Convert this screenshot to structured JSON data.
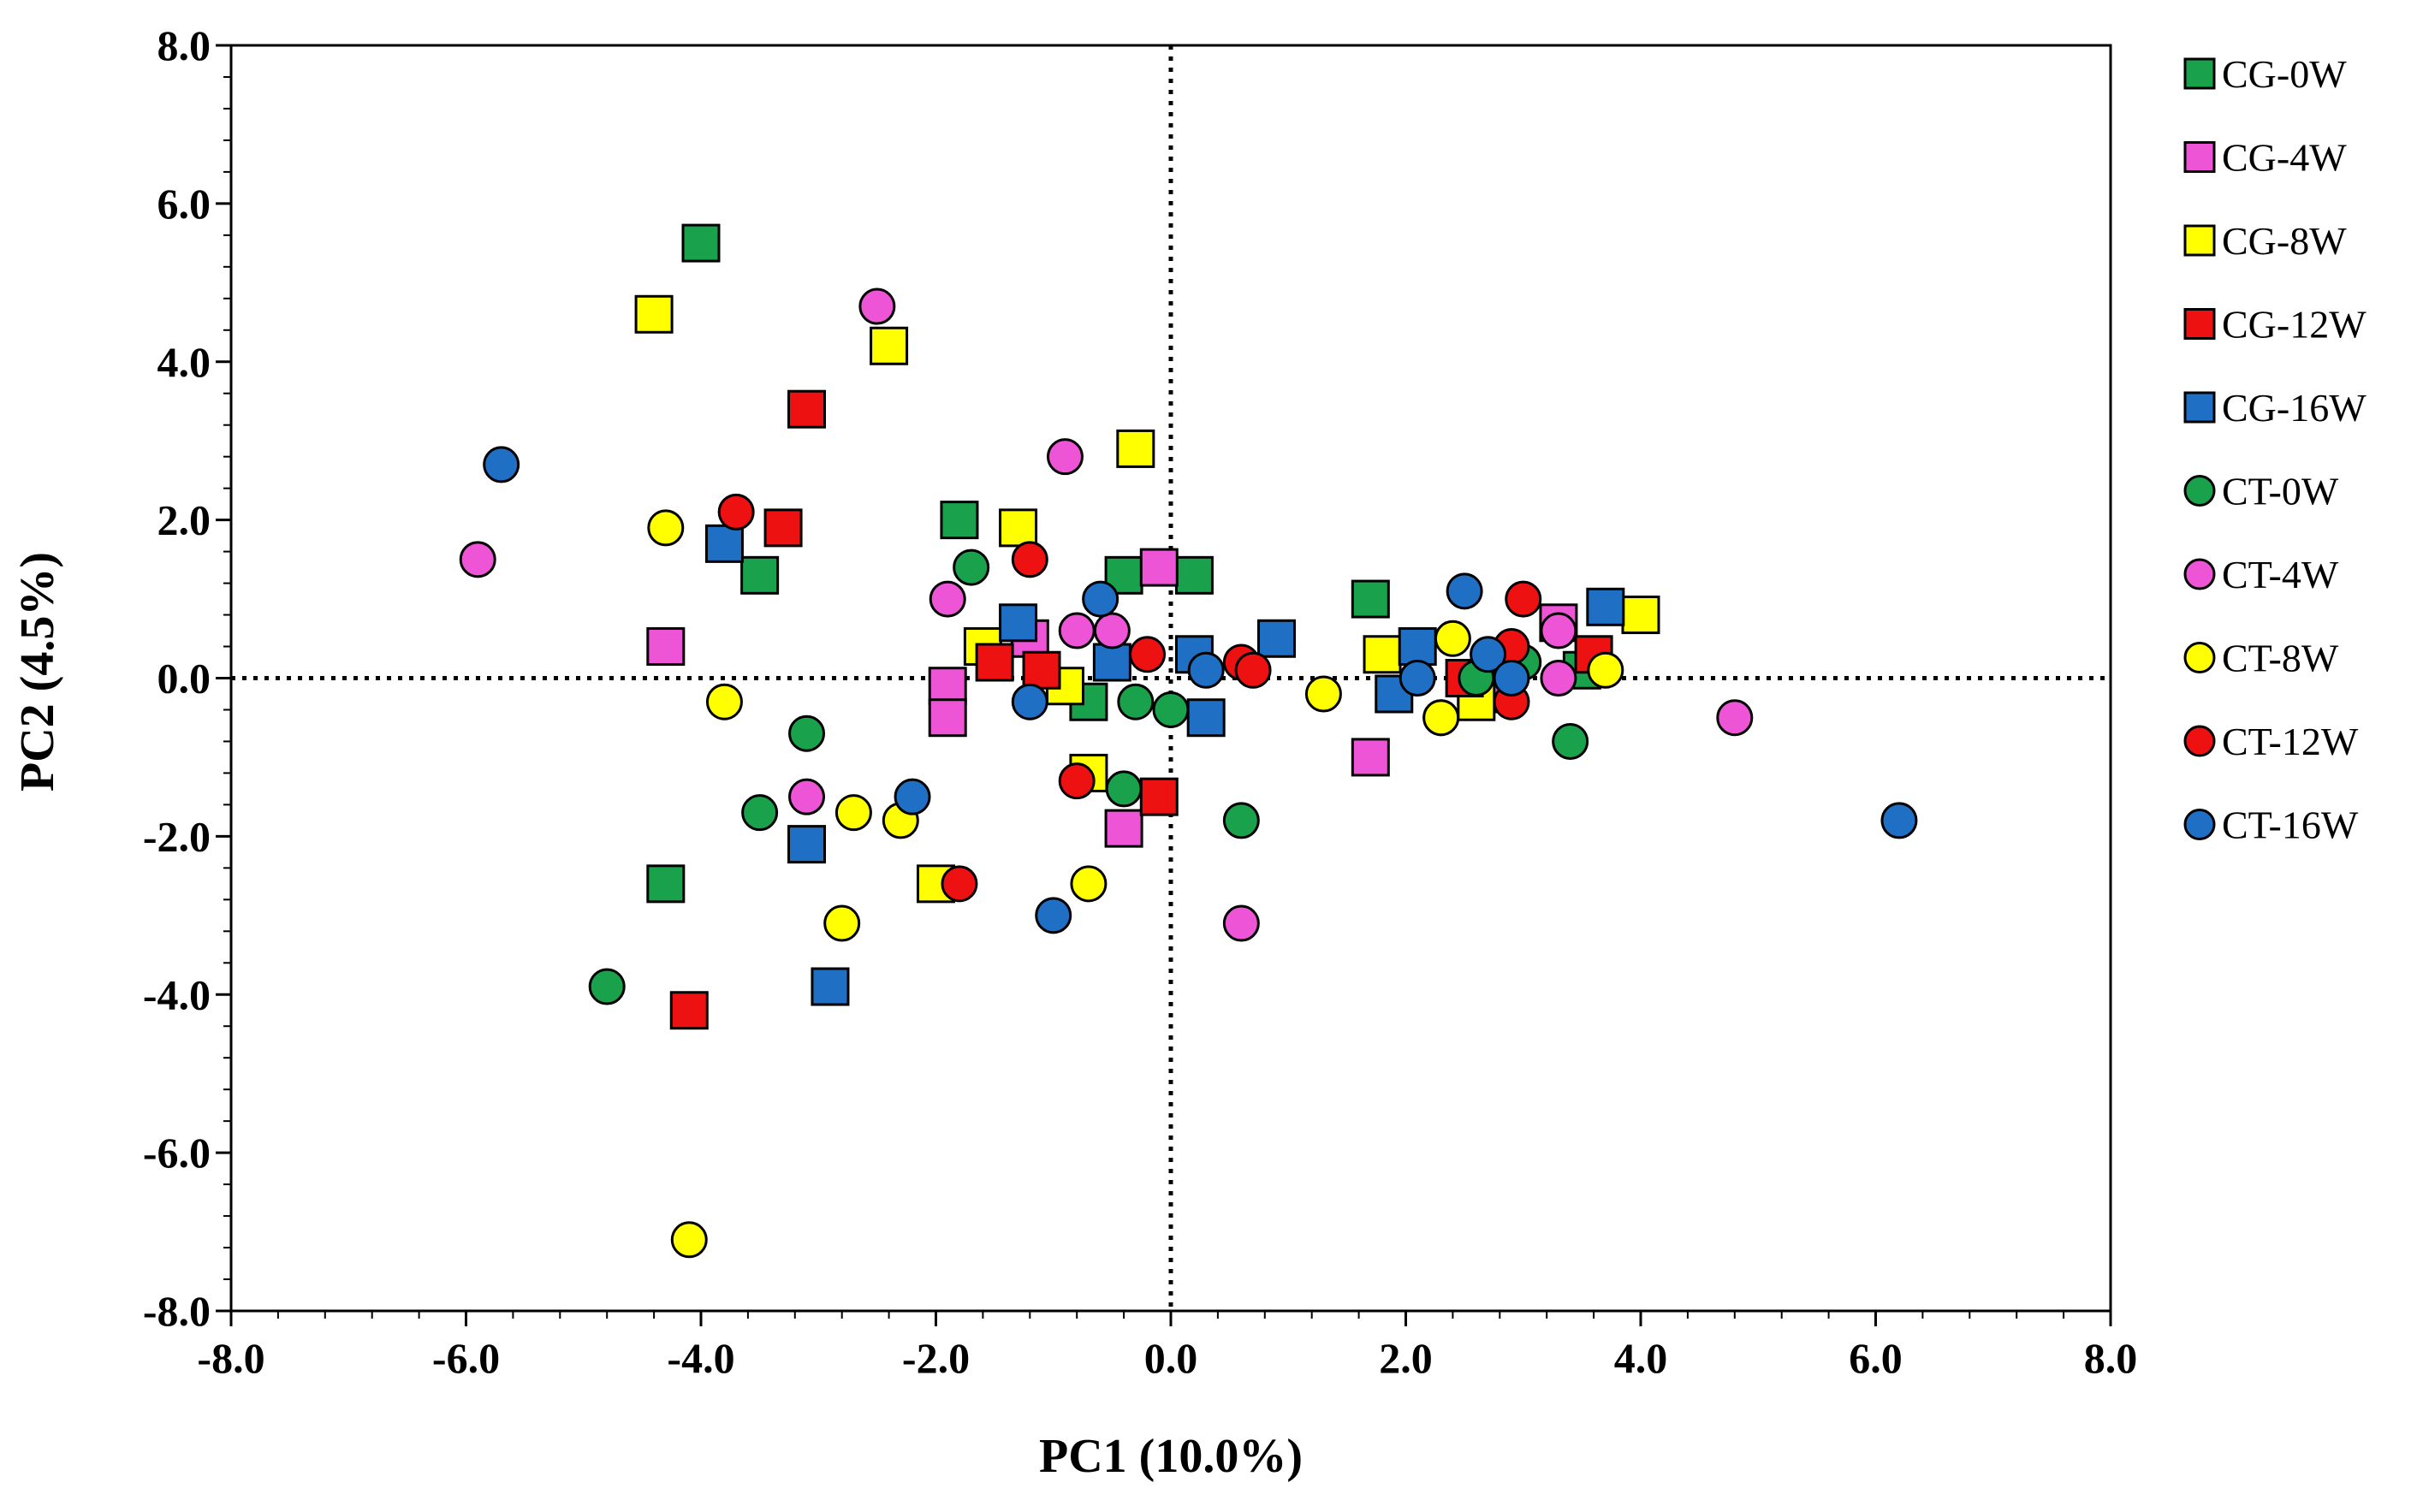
{
  "chart_data": {
    "type": "scatter",
    "title": "",
    "xlabel": "PC1 (10.0%)",
    "ylabel": "PC2 (4.5%)",
    "xlim": [
      -8,
      8
    ],
    "ylim": [
      -8,
      8
    ],
    "xticks": [
      "-8.0",
      "-6.0",
      "-4.0",
      "-2.0",
      "0.0",
      "2.0",
      "4.0",
      "6.0",
      "8.0"
    ],
    "yticks": [
      "-8.0",
      "-6.0",
      "-4.0",
      "-2.0",
      "0.0",
      "2.0",
      "4.0",
      "6.0",
      "8.0"
    ],
    "reference_lines": {
      "x": 0,
      "y": 0,
      "style": "dotted"
    },
    "legend_position": "right",
    "series": [
      {
        "name": "CG-0W",
        "marker": "square",
        "color": "#1aa14b",
        "points": [
          [
            -4.0,
            5.5
          ],
          [
            -3.5,
            1.3
          ],
          [
            -1.8,
            2.0
          ],
          [
            -0.4,
            1.3
          ],
          [
            0.2,
            1.3
          ],
          [
            1.7,
            1.0
          ],
          [
            -4.3,
            -2.6
          ],
          [
            -0.7,
            -0.3
          ],
          [
            3.5,
            0.1
          ],
          [
            2.6,
            -0.1
          ]
        ]
      },
      {
        "name": "CG-4W",
        "marker": "square",
        "color": "#ee55d6",
        "points": [
          [
            -4.3,
            0.4
          ],
          [
            -1.9,
            -0.1
          ],
          [
            -1.9,
            -0.5
          ],
          [
            -0.4,
            -1.9
          ],
          [
            -0.1,
            1.4
          ],
          [
            1.7,
            -1.0
          ],
          [
            3.3,
            0.7
          ],
          [
            2.7,
            -0.2
          ],
          [
            -1.2,
            0.5
          ]
        ]
      },
      {
        "name": "CG-8W",
        "marker": "square",
        "color": "#ffff00",
        "points": [
          [
            -4.4,
            4.6
          ],
          [
            -2.4,
            4.2
          ],
          [
            -0.3,
            2.9
          ],
          [
            -1.3,
            1.9
          ],
          [
            -1.6,
            0.4
          ],
          [
            -0.9,
            -0.1
          ],
          [
            -0.7,
            -1.2
          ],
          [
            -2.0,
            -2.6
          ],
          [
            1.8,
            0.3
          ],
          [
            2.6,
            -0.3
          ],
          [
            4.0,
            0.8
          ]
        ]
      },
      {
        "name": "CG-12W",
        "marker": "square",
        "color": "#ee1111",
        "points": [
          [
            -3.1,
            3.4
          ],
          [
            -3.3,
            1.9
          ],
          [
            -1.5,
            0.2
          ],
          [
            -1.1,
            0.1
          ],
          [
            -0.1,
            -1.5
          ],
          [
            -4.1,
            -4.2
          ],
          [
            2.5,
            0.0
          ],
          [
            3.6,
            0.3
          ]
        ]
      },
      {
        "name": "CG-16W",
        "marker": "square",
        "color": "#1f6fc4",
        "points": [
          [
            -3.8,
            1.7
          ],
          [
            -1.3,
            0.7
          ],
          [
            -0.5,
            0.2
          ],
          [
            0.2,
            0.3
          ],
          [
            0.9,
            0.5
          ],
          [
            0.3,
            -0.5
          ],
          [
            -3.1,
            -2.1
          ],
          [
            -2.9,
            -3.9
          ],
          [
            1.9,
            -0.2
          ],
          [
            2.1,
            0.4
          ],
          [
            3.7,
            0.9
          ]
        ]
      },
      {
        "name": "CT-0W",
        "marker": "circle",
        "color": "#1aa14b",
        "points": [
          [
            -1.7,
            1.4
          ],
          [
            -3.1,
            -0.7
          ],
          [
            -3.5,
            -1.7
          ],
          [
            -0.4,
            -1.4
          ],
          [
            -0.3,
            -0.3
          ],
          [
            0.0,
            -0.4
          ],
          [
            0.6,
            -1.8
          ],
          [
            -4.8,
            -3.9
          ],
          [
            2.6,
            0.0
          ],
          [
            3.4,
            -0.8
          ],
          [
            3.0,
            0.2
          ]
        ]
      },
      {
        "name": "CT-4W",
        "marker": "circle",
        "color": "#ee55d6",
        "points": [
          [
            -5.9,
            1.5
          ],
          [
            -2.5,
            4.7
          ],
          [
            -0.9,
            2.8
          ],
          [
            -1.9,
            1.0
          ],
          [
            -0.8,
            0.6
          ],
          [
            -0.5,
            0.6
          ],
          [
            -3.1,
            -1.5
          ],
          [
            0.6,
            -3.1
          ],
          [
            2.3,
            -0.5
          ],
          [
            3.3,
            0.0
          ],
          [
            3.3,
            0.6
          ],
          [
            4.8,
            -0.5
          ]
        ]
      },
      {
        "name": "CT-8W",
        "marker": "circle",
        "color": "#ffff00",
        "points": [
          [
            -4.3,
            1.9
          ],
          [
            -3.8,
            -0.3
          ],
          [
            -2.7,
            -1.7
          ],
          [
            -2.3,
            -1.8
          ],
          [
            -2.8,
            -3.1
          ],
          [
            -0.7,
            -2.6
          ],
          [
            -4.1,
            -7.1
          ],
          [
            1.3,
            -0.2
          ],
          [
            2.3,
            -0.5
          ],
          [
            2.4,
            0.5
          ],
          [
            3.7,
            0.1
          ]
        ]
      },
      {
        "name": "CT-12W",
        "marker": "circle",
        "color": "#ee1111",
        "points": [
          [
            -3.7,
            2.1
          ],
          [
            -1.2,
            1.5
          ],
          [
            -0.8,
            -1.3
          ],
          [
            -1.8,
            -2.6
          ],
          [
            -0.2,
            0.3
          ],
          [
            0.6,
            0.2
          ],
          [
            0.7,
            0.1
          ],
          [
            3.0,
            1.0
          ],
          [
            2.9,
            0.4
          ],
          [
            2.9,
            -0.3
          ]
        ]
      },
      {
        "name": "CT-16W",
        "marker": "circle",
        "color": "#1f6fc4",
        "points": [
          [
            -5.7,
            2.7
          ],
          [
            -0.6,
            1.0
          ],
          [
            -1.2,
            -0.3
          ],
          [
            -2.2,
            -1.5
          ],
          [
            -1.0,
            -3.0
          ],
          [
            0.3,
            0.1
          ],
          [
            2.5,
            1.1
          ],
          [
            2.7,
            0.3
          ],
          [
            2.1,
            0.0
          ],
          [
            2.9,
            0.0
          ],
          [
            6.2,
            -1.8
          ]
        ]
      }
    ]
  }
}
